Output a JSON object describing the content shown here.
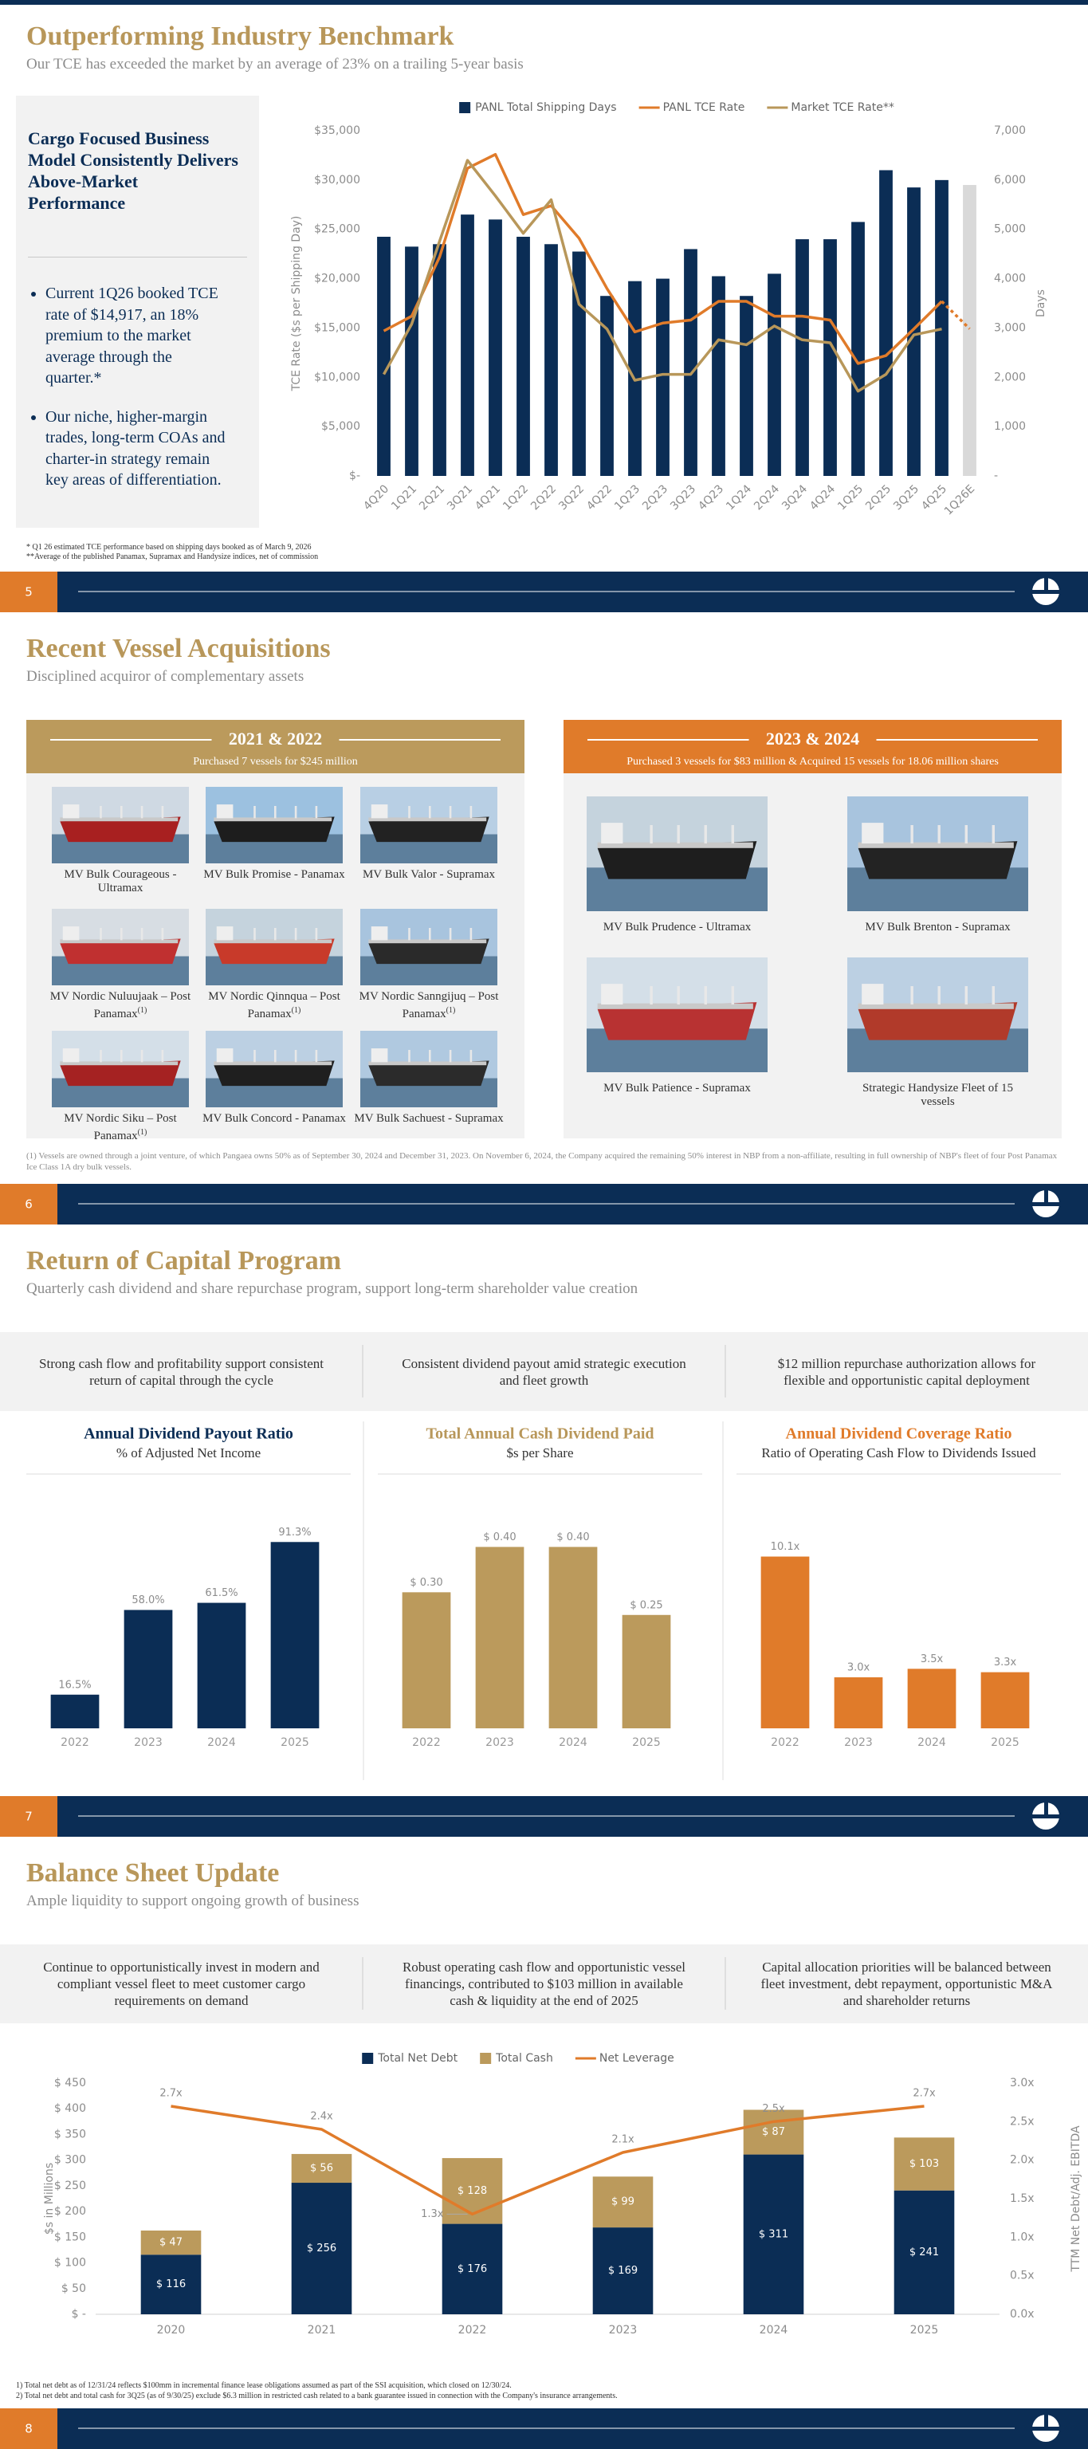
{
  "slides": [
    {
      "title": "Outperforming Industry Benchmark",
      "subtitle": "Our TCE has exceeded the market by an average of 23% on a trailing 5-year basis",
      "page": 5,
      "box": {
        "heading": "Cargo Focused Business Model Consistently Delivers Above-Market Performance",
        "bullets": [
          "Current 1Q26 booked TCE rate of $14,917, an 18% premium to the market average through the quarter.*",
          "Our niche, higher-margin trades, long-term COAs and charter-in strategy remain key areas of differentiation."
        ]
      },
      "footnotes": [
        "* Q1 26 estimated TCE performance based on shipping days booked as of March 9, 2026",
        "**Average of the published Panamax, Supramax and Handysize indices, net of commission"
      ]
    },
    {
      "title": "Recent Vessel Acquisitions",
      "subtitle": "Disciplined acquiror of complementary assets",
      "page": 6,
      "panels": [
        {
          "heading": "2021 & 2022",
          "subheading": "Purchased 7 vessels for $245 million",
          "vessels": [
            {
              "name": "MV Bulk Courageous - Ultramax"
            },
            {
              "name": "MV Bulk Promise - Panamax"
            },
            {
              "name": "MV Bulk Valor - Supramax"
            },
            {
              "name": "MV Nordic Nuluujaak – Post Panamax",
              "note": "(1)"
            },
            {
              "name": "MV Nordic Qinnqua – Post Panamax",
              "note": "(1)"
            },
            {
              "name": "MV Nordic Sanngijuq – Post Panamax",
              "note": "(1)"
            },
            {
              "name": "MV Nordic Siku – Post Panamax",
              "note": "(1)"
            },
            {
              "name": "MV Bulk Concord - Panamax"
            },
            {
              "name": "MV Bulk Sachuest - Supramax"
            }
          ]
        },
        {
          "heading": "2023 & 2024",
          "subheading": "Purchased 3 vessels for $83 million & Acquired 15 vessels for 18.06 million shares",
          "vessels": [
            {
              "name": "MV Bulk Prudence - Ultramax"
            },
            {
              "name": "MV Bulk Brenton - Supramax"
            },
            {
              "name": "MV Bulk Patience - Supramax"
            },
            {
              "name": "Strategic Handysize Fleet of 15 vessels"
            }
          ]
        }
      ],
      "footnote": "(1) Vessels are owned through a joint venture, of which Pangaea owns 50% as of September 30, 2024 and December 31, 2023. On November 6, 2024, the Company acquired the remaining 50% interest in NBP from a non-affiliate, resulting in full ownership of NBP's fleet of four Post Panamax Ice Class 1A dry bulk vessels."
    },
    {
      "title": "Return of Capital Program",
      "subtitle": "Quarterly cash dividend and share repurchase program, support long-term shareholder value creation",
      "page": 7,
      "highlights": [
        "Strong cash flow and profitability support consistent return of capital through the cycle",
        "Consistent dividend payout amid strategic execution and fleet growth",
        "$12 million repurchase authorization allows for flexible and opportunistic capital deployment"
      ]
    },
    {
      "title": "Balance Sheet Update",
      "subtitle": "Ample liquidity to support ongoing growth of business",
      "page": 8,
      "highlights": [
        "Continue to opportunistically invest in modern and compliant vessel fleet to meet customer cargo requirements on demand",
        "Robust operating cash flow and opportunistic vessel financings, contributed to $103 million in available cash & liquidity at the end of 2025",
        "Capital allocation priorities will be balanced between fleet investment, debt repayment, opportunistic M&A and shareholder returns"
      ],
      "footnotes": [
        "1) Total net debt as of 12/31/24 reflects $100mm in incremental finance lease obligations assumed as part of the SSI acquisition, which closed on 12/30/24.",
        "2) Total net debt and total cash for 3Q25 (as of 9/30/25) exclude $6.3 million in restricted cash related to a bank guarantee issued in connection with the Company's insurance arrangements."
      ]
    }
  ],
  "chart_data": [
    {
      "type": "bar_line",
      "categories": [
        "4Q20",
        "1Q21",
        "2Q21",
        "3Q21",
        "4Q21",
        "1Q22",
        "2Q22",
        "3Q22",
        "4Q22",
        "1Q23",
        "2Q23",
        "3Q23",
        "4Q23",
        "1Q24",
        "2Q24",
        "3Q24",
        "4Q24",
        "1Q25",
        "2Q25",
        "3Q25",
        "4Q25",
        "1Q26E"
      ],
      "y_label": "TCE Rate ($s per Shipping Day)",
      "y2_label": "Days",
      "legend": "top",
      "series": [
        {
          "name": "PANL Total Shipping Days",
          "type": "bar",
          "axis": "y2",
          "color": "#0b2d55",
          "colors": [
            "#0b2d55",
            "#0b2d55",
            "#0b2d55",
            "#0b2d55",
            "#0b2d55",
            "#0b2d55",
            "#0b2d55",
            "#0b2d55",
            "#0b2d55",
            "#0b2d55",
            "#0b2d55",
            "#0b2d55",
            "#0b2d55",
            "#0b2d55",
            "#0b2d55",
            "#0b2d55",
            "#0b2d55",
            "#0b2d55",
            "#0b2d55",
            "#0b2d55",
            "#0b2d55",
            "#d9d9d9"
          ],
          "values": [
            4850,
            4650,
            4700,
            5300,
            5200,
            4850,
            4700,
            4550,
            3650,
            3950,
            4000,
            4600,
            4050,
            3650,
            4100,
            4800,
            4800,
            5150,
            6200,
            5850,
            6000,
            5900
          ]
        },
        {
          "name": "PANL TCE Rate",
          "type": "line",
          "color": "#e07b2a",
          "dash_last_segment": true,
          "values": [
            14700,
            16200,
            22200,
            31200,
            32600,
            26500,
            27400,
            24100,
            19000,
            14600,
            15500,
            15800,
            17700,
            17700,
            16200,
            16200,
            15800,
            11400,
            12200,
            14900,
            17700,
            14917
          ]
        },
        {
          "name": "Market TCE Rate**",
          "type": "line",
          "color": "#b8975a",
          "values": [
            10300,
            15400,
            23800,
            32000,
            28400,
            24600,
            28000,
            17400,
            14900,
            9700,
            10300,
            10300,
            13800,
            13300,
            15200,
            13800,
            13500,
            8600,
            10300,
            14300,
            14900,
            null
          ]
        }
      ],
      "ylim": [
        0,
        35000
      ],
      "yticks": [
        {
          "value": 0,
          "label": "$-"
        },
        {
          "value": 5000,
          "label": "$5,000"
        },
        {
          "value": 10000,
          "label": "$10,000"
        },
        {
          "value": 15000,
          "label": "$15,000"
        },
        {
          "value": 20000,
          "label": "$20,000"
        },
        {
          "value": 25000,
          "label": "$25,000"
        },
        {
          "value": 30000,
          "label": "$30,000"
        },
        {
          "value": 35000,
          "label": "$35,000"
        }
      ],
      "y2lim": [
        0,
        7000
      ],
      "y2ticks": [
        {
          "value": 0,
          "label": "-"
        },
        {
          "value": 1000,
          "label": "1,000"
        },
        {
          "value": 2000,
          "label": "2,000"
        },
        {
          "value": 3000,
          "label": "3,000"
        },
        {
          "value": 4000,
          "label": "4,000"
        },
        {
          "value": 5000,
          "label": "5,000"
        },
        {
          "value": 6000,
          "label": "6,000"
        },
        {
          "value": 7000,
          "label": "7,000"
        }
      ]
    },
    {
      "type": "bar",
      "title": "Annual Dividend Payout Ratio",
      "subtitle": "% of Adjusted Net Income",
      "title_color": "#0b2d55",
      "categories": [
        "2022",
        "2023",
        "2024",
        "2025"
      ],
      "values": [
        16.5,
        58.0,
        61.5,
        91.3
      ],
      "value_labels": [
        "16.5%",
        "58.0%",
        "61.5%",
        "91.3%"
      ],
      "color": "#0b2d55",
      "ylim": [
        0,
        100
      ]
    },
    {
      "type": "bar",
      "title": "Total Annual Cash Dividend Paid",
      "subtitle": "$s per Share",
      "title_color": "#b8975a",
      "categories": [
        "2022",
        "2023",
        "2024",
        "2025"
      ],
      "values": [
        0.3,
        0.4,
        0.4,
        0.25
      ],
      "value_labels": [
        "$ 0.30",
        "$ 0.40",
        "$ 0.40",
        "$ 0.25"
      ],
      "color": "#bb9a5c",
      "ylim": [
        0,
        0.45
      ]
    },
    {
      "type": "bar",
      "title": "Annual Dividend Coverage Ratio",
      "subtitle": "Ratio of Operating Cash Flow to Dividends Issued",
      "title_color": "#e07b2a",
      "categories": [
        "2022",
        "2023",
        "2024",
        "2025"
      ],
      "values": [
        10.1,
        3.0,
        3.5,
        3.3
      ],
      "value_labels": [
        "10.1x",
        "3.0x",
        "3.5x",
        "3.3x"
      ],
      "color": "#e07b2a",
      "ylim": [
        0,
        12
      ]
    },
    {
      "type": "stacked_bar_line",
      "categories": [
        "2020",
        "2021",
        "2022",
        "2023",
        "2024",
        "2025"
      ],
      "y_label": "$s in Millions",
      "y2_label": "TTM Net Debt/Adj. EBITDA",
      "legend": "top",
      "series": [
        {
          "name": "Total Net Debt",
          "type": "bar",
          "color": "#0b2d55",
          "values": [
            116,
            256,
            176,
            169,
            311,
            241
          ],
          "value_labels": [
            "$ 116",
            "$ 256",
            "$ 176",
            "$ 169",
            "$ 311",
            "$ 241"
          ]
        },
        {
          "name": "Total Cash",
          "type": "bar",
          "color": "#bb9a5c",
          "values": [
            47,
            56,
            128,
            99,
            87,
            103
          ],
          "value_labels": [
            "$ 47",
            "$ 56",
            "$ 128",
            "$ 99",
            "$ 87",
            "$ 103"
          ]
        },
        {
          "name": "Net Leverage",
          "type": "line",
          "axis": "y2",
          "color": "#e07b2a",
          "values": [
            2.7,
            2.4,
            1.3,
            2.1,
            2.5,
            2.7
          ],
          "value_labels": [
            "2.7x",
            "2.4x",
            "1.3x",
            "2.1x",
            "2.5x",
            "2.7x"
          ]
        }
      ],
      "ylim": [
        0,
        450
      ],
      "yticks": [
        {
          "value": 0,
          "label": "$ -"
        },
        {
          "value": 50,
          "label": "$ 50"
        },
        {
          "value": 100,
          "label": "$ 100"
        },
        {
          "value": 150,
          "label": "$ 150"
        },
        {
          "value": 200,
          "label": "$ 200"
        },
        {
          "value": 250,
          "label": "$ 250"
        },
        {
          "value": 300,
          "label": "$ 300"
        },
        {
          "value": 350,
          "label": "$ 350"
        },
        {
          "value": 400,
          "label": "$ 400"
        },
        {
          "value": 450,
          "label": "$ 450"
        }
      ],
      "y2lim": [
        0,
        3
      ],
      "y2ticks": [
        {
          "value": 0,
          "label": "0.0x"
        },
        {
          "value": 0.5,
          "label": "0.5x"
        },
        {
          "value": 1,
          "label": "1.0x"
        },
        {
          "value": 1.5,
          "label": "1.5x"
        },
        {
          "value": 2,
          "label": "2.0x"
        },
        {
          "value": 2.5,
          "label": "2.5x"
        },
        {
          "value": 3,
          "label": "3.0x"
        }
      ]
    }
  ]
}
